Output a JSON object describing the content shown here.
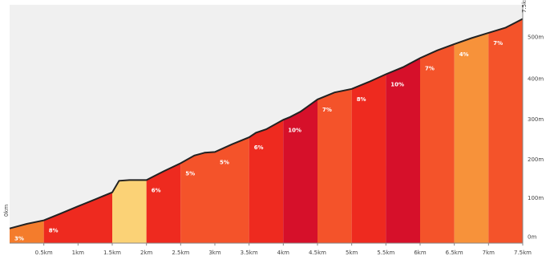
{
  "chart_data": {
    "type": "area",
    "x_unit": "km",
    "y_unit": "m",
    "xlim": [
      0,
      7.5
    ],
    "ylim": [
      0,
      680
    ],
    "x_tick_values": [
      0.5,
      1,
      1.5,
      2,
      2.5,
      3,
      3.5,
      4,
      4.5,
      5,
      5.5,
      6,
      6.5,
      7,
      7.5
    ],
    "x_tick_labels": [
      "0.5km",
      "1km",
      "1.5km",
      "2km",
      "2.5km",
      "3km",
      "3.5km",
      "4km",
      "4.5km",
      "5km",
      "5.5km",
      "6km",
      "6.5km",
      "7km",
      "7.5km"
    ],
    "y_tick_values": [
      20,
      130,
      240,
      355,
      470,
      590
    ],
    "y_tick_labels": [
      "0m",
      "100m",
      "200m",
      "300m",
      "400m",
      "500m"
    ],
    "profile": {
      "x": [
        0,
        0.25,
        0.5,
        0.75,
        1.0,
        1.25,
        1.5,
        1.6,
        1.75,
        2.0,
        2.1,
        2.25,
        2.5,
        2.7,
        2.85,
        3.0,
        3.25,
        3.5,
        3.6,
        3.75,
        4.0,
        4.1,
        4.25,
        4.5,
        4.75,
        5.0,
        5.25,
        5.5,
        5.75,
        6.0,
        6.25,
        6.5,
        6.75,
        7.0,
        7.25,
        7.5
      ],
      "y": [
        42,
        55,
        65,
        85,
        105,
        125,
        145,
        178,
        180,
        180,
        190,
        205,
        228,
        250,
        258,
        260,
        282,
        302,
        315,
        325,
        352,
        360,
        375,
        410,
        430,
        440,
        460,
        482,
        502,
        528,
        550,
        568,
        585,
        600,
        615,
        640
      ]
    },
    "segments": [
      {
        "x0": 0.0,
        "x1": 0.5,
        "label": "3%",
        "color": "#f47c2c"
      },
      {
        "x0": 0.5,
        "x1": 1.5,
        "label": "8%",
        "color": "#ee2a1f"
      },
      {
        "x0": 1.5,
        "x1": 2.0,
        "label": "",
        "color": "#fbd276"
      },
      {
        "x0": 2.0,
        "x1": 2.5,
        "label": "6%",
        "color": "#ee2a1f"
      },
      {
        "x0": 2.5,
        "x1": 3.0,
        "label": "5%",
        "color": "#f4532a"
      },
      {
        "x0": 3.0,
        "x1": 3.5,
        "label": "5%",
        "color": "#f4532a"
      },
      {
        "x0": 3.5,
        "x1": 4.0,
        "label": "6%",
        "color": "#ee2a1f"
      },
      {
        "x0": 4.0,
        "x1": 4.5,
        "label": "10%",
        "color": "#d6102a"
      },
      {
        "x0": 4.5,
        "x1": 5.0,
        "label": "7%",
        "color": "#f4532a"
      },
      {
        "x0": 5.0,
        "x1": 5.5,
        "label": "8%",
        "color": "#ee2a1f"
      },
      {
        "x0": 5.5,
        "x1": 6.0,
        "label": "10%",
        "color": "#d6102a"
      },
      {
        "x0": 6.0,
        "x1": 6.5,
        "label": "7%",
        "color": "#f4532a"
      },
      {
        "x0": 6.5,
        "x1": 7.0,
        "label": "4%",
        "color": "#f7923a"
      },
      {
        "x0": 7.0,
        "x1": 7.5,
        "label": "7%",
        "color": "#f4532a"
      }
    ],
    "start_marker": "0km",
    "end_marker": "7.5km",
    "grid": false,
    "background": "#f0f0f0",
    "outline_color": "#222222"
  }
}
